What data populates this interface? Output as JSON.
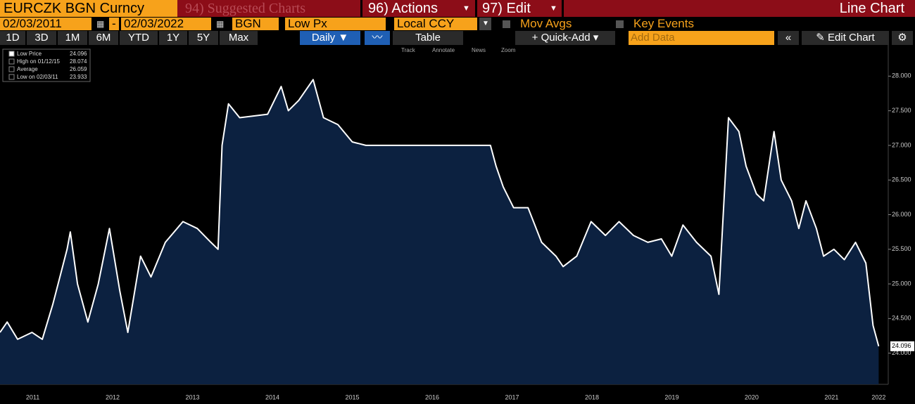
{
  "toolbar": {
    "ticker": "EURCZK BGN Curncy",
    "suggested": "94) Suggested Charts",
    "actions": "96) Actions",
    "edit": "97) Edit",
    "view": "Line Chart",
    "start_date": "02/03/2011",
    "dash": "-",
    "end_date": "02/03/2022",
    "source": "BGN",
    "field": "Low Px",
    "currency": "Local CCY",
    "mov_avgs": "Mov Avgs",
    "key_events": "Key Events",
    "periods": [
      "1D",
      "3D",
      "1M",
      "6M",
      "YTD",
      "1Y",
      "5Y",
      "Max"
    ],
    "frequency": "Daily",
    "table": "Table",
    "quick_add": "Quick-Add",
    "add_data": "Add Data",
    "edit_chart": "Edit Chart",
    "tools": [
      "Track",
      "Annotate",
      "News",
      "Zoom"
    ]
  },
  "chart_data": {
    "type": "line",
    "color": "#ffffff",
    "fill": "#0c2140",
    "legend": [
      {
        "label": "Low Price",
        "value": "24.096"
      },
      {
        "label": "High on 01/12/15",
        "value": "28.074"
      },
      {
        "label": "Average",
        "value": "26.059"
      },
      {
        "label": "Low on 02/03/11",
        "value": "23.933"
      }
    ],
    "last_label": "24.096",
    "x": [
      2011.09,
      2011.18,
      2011.31,
      2011.49,
      2011.62,
      2011.75,
      2011.84,
      2011.93,
      2011.97,
      2012.06,
      2012.19,
      2012.32,
      2012.46,
      2012.59,
      2012.69,
      2012.85,
      2012.98,
      2013.16,
      2013.38,
      2013.56,
      2013.73,
      2013.82,
      2013.87,
      2013.95,
      2014.09,
      2014.44,
      2014.61,
      2014.7,
      2014.83,
      2015.01,
      2015.14,
      2015.32,
      2015.5,
      2015.67,
      2016.38,
      2017.23,
      2017.3,
      2017.39,
      2017.52,
      2017.7,
      2017.87,
      2018.05,
      2018.14,
      2018.31,
      2018.49,
      2018.67,
      2018.84,
      2019.02,
      2019.2,
      2019.37,
      2019.5,
      2019.64,
      2019.81,
      2019.99,
      2020.09,
      2020.21,
      2020.34,
      2020.43,
      2020.56,
      2020.65,
      2020.78,
      2020.87,
      2021.0,
      2021.09,
      2021.18,
      2021.31,
      2021.4,
      2021.53,
      2021.66,
      2021.8,
      2021.93,
      2022.02,
      2022.09
    ],
    "values": [
      24.3,
      24.45,
      24.2,
      24.3,
      24.2,
      24.7,
      25.1,
      25.5,
      25.75,
      25.0,
      24.45,
      25.0,
      25.8,
      24.9,
      24.3,
      25.4,
      25.1,
      25.6,
      25.9,
      25.8,
      25.6,
      25.5,
      27.0,
      27.6,
      27.4,
      27.45,
      27.85,
      27.5,
      27.65,
      27.95,
      27.4,
      27.3,
      27.05,
      27.0,
      27.0,
      27.0,
      26.7,
      26.4,
      26.1,
      26.1,
      25.6,
      25.4,
      25.25,
      25.4,
      25.9,
      25.7,
      25.9,
      25.7,
      25.6,
      25.65,
      25.4,
      25.85,
      25.6,
      25.4,
      24.85,
      27.4,
      27.2,
      26.7,
      26.3,
      26.2,
      27.2,
      26.5,
      26.2,
      25.8,
      26.2,
      25.8,
      25.4,
      25.5,
      25.35,
      25.6,
      25.3,
      24.4,
      24.1
    ],
    "xlim": [
      2011.09,
      2022.21
    ],
    "xticks": [
      {
        "value": 2011.5,
        "label": "2011"
      },
      {
        "value": 2012.5,
        "label": "2012"
      },
      {
        "value": 2013.5,
        "label": "2013"
      },
      {
        "value": 2014.5,
        "label": "2014"
      },
      {
        "value": 2015.5,
        "label": "2015"
      },
      {
        "value": 2016.5,
        "label": "2016"
      },
      {
        "value": 2017.5,
        "label": "2017"
      },
      {
        "value": 2018.5,
        "label": "2018"
      },
      {
        "value": 2019.5,
        "label": "2019"
      },
      {
        "value": 2020.5,
        "label": "2020"
      },
      {
        "value": 2021.5,
        "label": "2021"
      },
      {
        "value": 2022.09,
        "label": "2022"
      }
    ],
    "ylim": [
      23.55,
      28.45
    ],
    "yticks": [
      {
        "value": 24,
        "label": "24.000"
      },
      {
        "value": 24.5,
        "label": "24.500"
      },
      {
        "value": 25,
        "label": "25.000"
      },
      {
        "value": 25.5,
        "label": "25.500"
      },
      {
        "value": 26,
        "label": "26.000"
      },
      {
        "value": 26.5,
        "label": "26.500"
      },
      {
        "value": 27,
        "label": "27.000"
      },
      {
        "value": 27.5,
        "label": "27.500"
      },
      {
        "value": 28,
        "label": "28.000"
      }
    ]
  }
}
